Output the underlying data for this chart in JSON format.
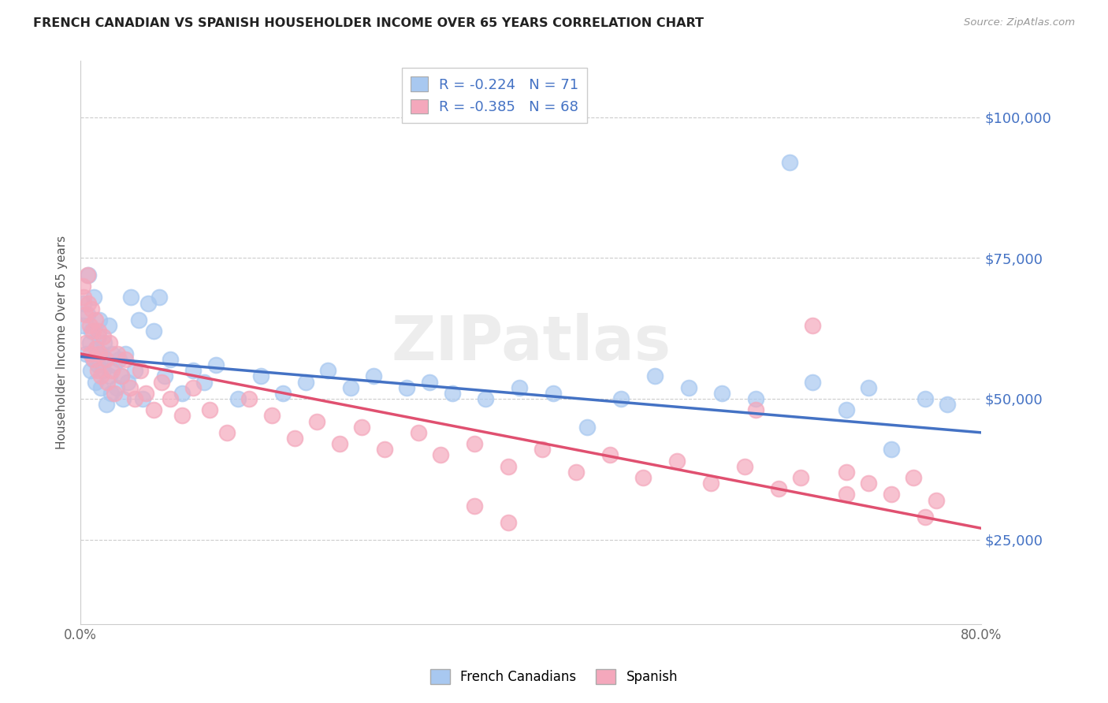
{
  "title": "FRENCH CANADIAN VS SPANISH HOUSEHOLDER INCOME OVER 65 YEARS CORRELATION CHART",
  "source": "Source: ZipAtlas.com",
  "ylabel": "Householder Income Over 65 years",
  "xlim": [
    0.0,
    0.8
  ],
  "ylim": [
    10000,
    110000
  ],
  "xticks": [
    0.0,
    0.1,
    0.2,
    0.3,
    0.4,
    0.5,
    0.6,
    0.7,
    0.8
  ],
  "xtick_labels": [
    "0.0%",
    "",
    "",
    "",
    "",
    "",
    "",
    "",
    "80.0%"
  ],
  "ytick_positions": [
    25000,
    50000,
    75000,
    100000
  ],
  "ytick_labels": [
    "$25,000",
    "$50,000",
    "$75,000",
    "$100,000"
  ],
  "blue_color": "#A8C8F0",
  "pink_color": "#F4A8BC",
  "blue_line_color": "#4472C4",
  "pink_line_color": "#E05070",
  "r_blue": -0.224,
  "n_blue": 71,
  "r_pink": -0.385,
  "n_pink": 68,
  "legend_label_blue": "French Canadians",
  "legend_label_pink": "Spanish",
  "watermark": "ZIPatlas",
  "blue_scatter_x": [
    0.002,
    0.003,
    0.005,
    0.006,
    0.007,
    0.008,
    0.009,
    0.01,
    0.011,
    0.012,
    0.013,
    0.014,
    0.015,
    0.016,
    0.017,
    0.018,
    0.019,
    0.02,
    0.021,
    0.022,
    0.023,
    0.025,
    0.026,
    0.027,
    0.028,
    0.03,
    0.032,
    0.034,
    0.036,
    0.038,
    0.04,
    0.042,
    0.045,
    0.048,
    0.052,
    0.055,
    0.06,
    0.065,
    0.07,
    0.075,
    0.08,
    0.09,
    0.1,
    0.11,
    0.12,
    0.14,
    0.16,
    0.18,
    0.2,
    0.22,
    0.24,
    0.26,
    0.29,
    0.31,
    0.33,
    0.36,
    0.39,
    0.42,
    0.45,
    0.48,
    0.51,
    0.54,
    0.57,
    0.6,
    0.63,
    0.65,
    0.68,
    0.7,
    0.72,
    0.75,
    0.77
  ],
  "blue_scatter_y": [
    63000,
    67000,
    58000,
    65000,
    72000,
    60000,
    55000,
    62000,
    57000,
    68000,
    53000,
    59000,
    56000,
    61000,
    64000,
    52000,
    58000,
    55000,
    60000,
    57000,
    49000,
    63000,
    54000,
    51000,
    58000,
    56000,
    52000,
    57000,
    54000,
    50000,
    58000,
    53000,
    68000,
    55000,
    64000,
    50000,
    67000,
    62000,
    68000,
    54000,
    57000,
    51000,
    55000,
    53000,
    56000,
    50000,
    54000,
    51000,
    53000,
    55000,
    52000,
    54000,
    52000,
    53000,
    51000,
    50000,
    52000,
    51000,
    45000,
    50000,
    54000,
    52000,
    51000,
    50000,
    92000,
    53000,
    48000,
    52000,
    41000,
    50000,
    49000
  ],
  "pink_scatter_x": [
    0.002,
    0.003,
    0.004,
    0.005,
    0.006,
    0.007,
    0.008,
    0.009,
    0.01,
    0.011,
    0.012,
    0.013,
    0.014,
    0.015,
    0.016,
    0.017,
    0.018,
    0.02,
    0.022,
    0.024,
    0.026,
    0.028,
    0.03,
    0.033,
    0.036,
    0.04,
    0.044,
    0.048,
    0.053,
    0.058,
    0.065,
    0.072,
    0.08,
    0.09,
    0.1,
    0.115,
    0.13,
    0.15,
    0.17,
    0.19,
    0.21,
    0.23,
    0.25,
    0.27,
    0.3,
    0.32,
    0.35,
    0.38,
    0.41,
    0.44,
    0.47,
    0.5,
    0.53,
    0.56,
    0.59,
    0.62,
    0.65,
    0.68,
    0.7,
    0.72,
    0.74,
    0.76,
    0.35,
    0.38,
    0.6,
    0.64,
    0.68,
    0.75
  ],
  "pink_scatter_y": [
    70000,
    68000,
    65000,
    60000,
    72000,
    67000,
    63000,
    58000,
    66000,
    62000,
    57000,
    64000,
    59000,
    55000,
    62000,
    58000,
    54000,
    61000,
    57000,
    53000,
    60000,
    55000,
    51000,
    58000,
    54000,
    57000,
    52000,
    50000,
    55000,
    51000,
    48000,
    53000,
    50000,
    47000,
    52000,
    48000,
    44000,
    50000,
    47000,
    43000,
    46000,
    42000,
    45000,
    41000,
    44000,
    40000,
    42000,
    38000,
    41000,
    37000,
    40000,
    36000,
    39000,
    35000,
    38000,
    34000,
    63000,
    37000,
    35000,
    33000,
    36000,
    32000,
    31000,
    28000,
    48000,
    36000,
    33000,
    29000
  ]
}
